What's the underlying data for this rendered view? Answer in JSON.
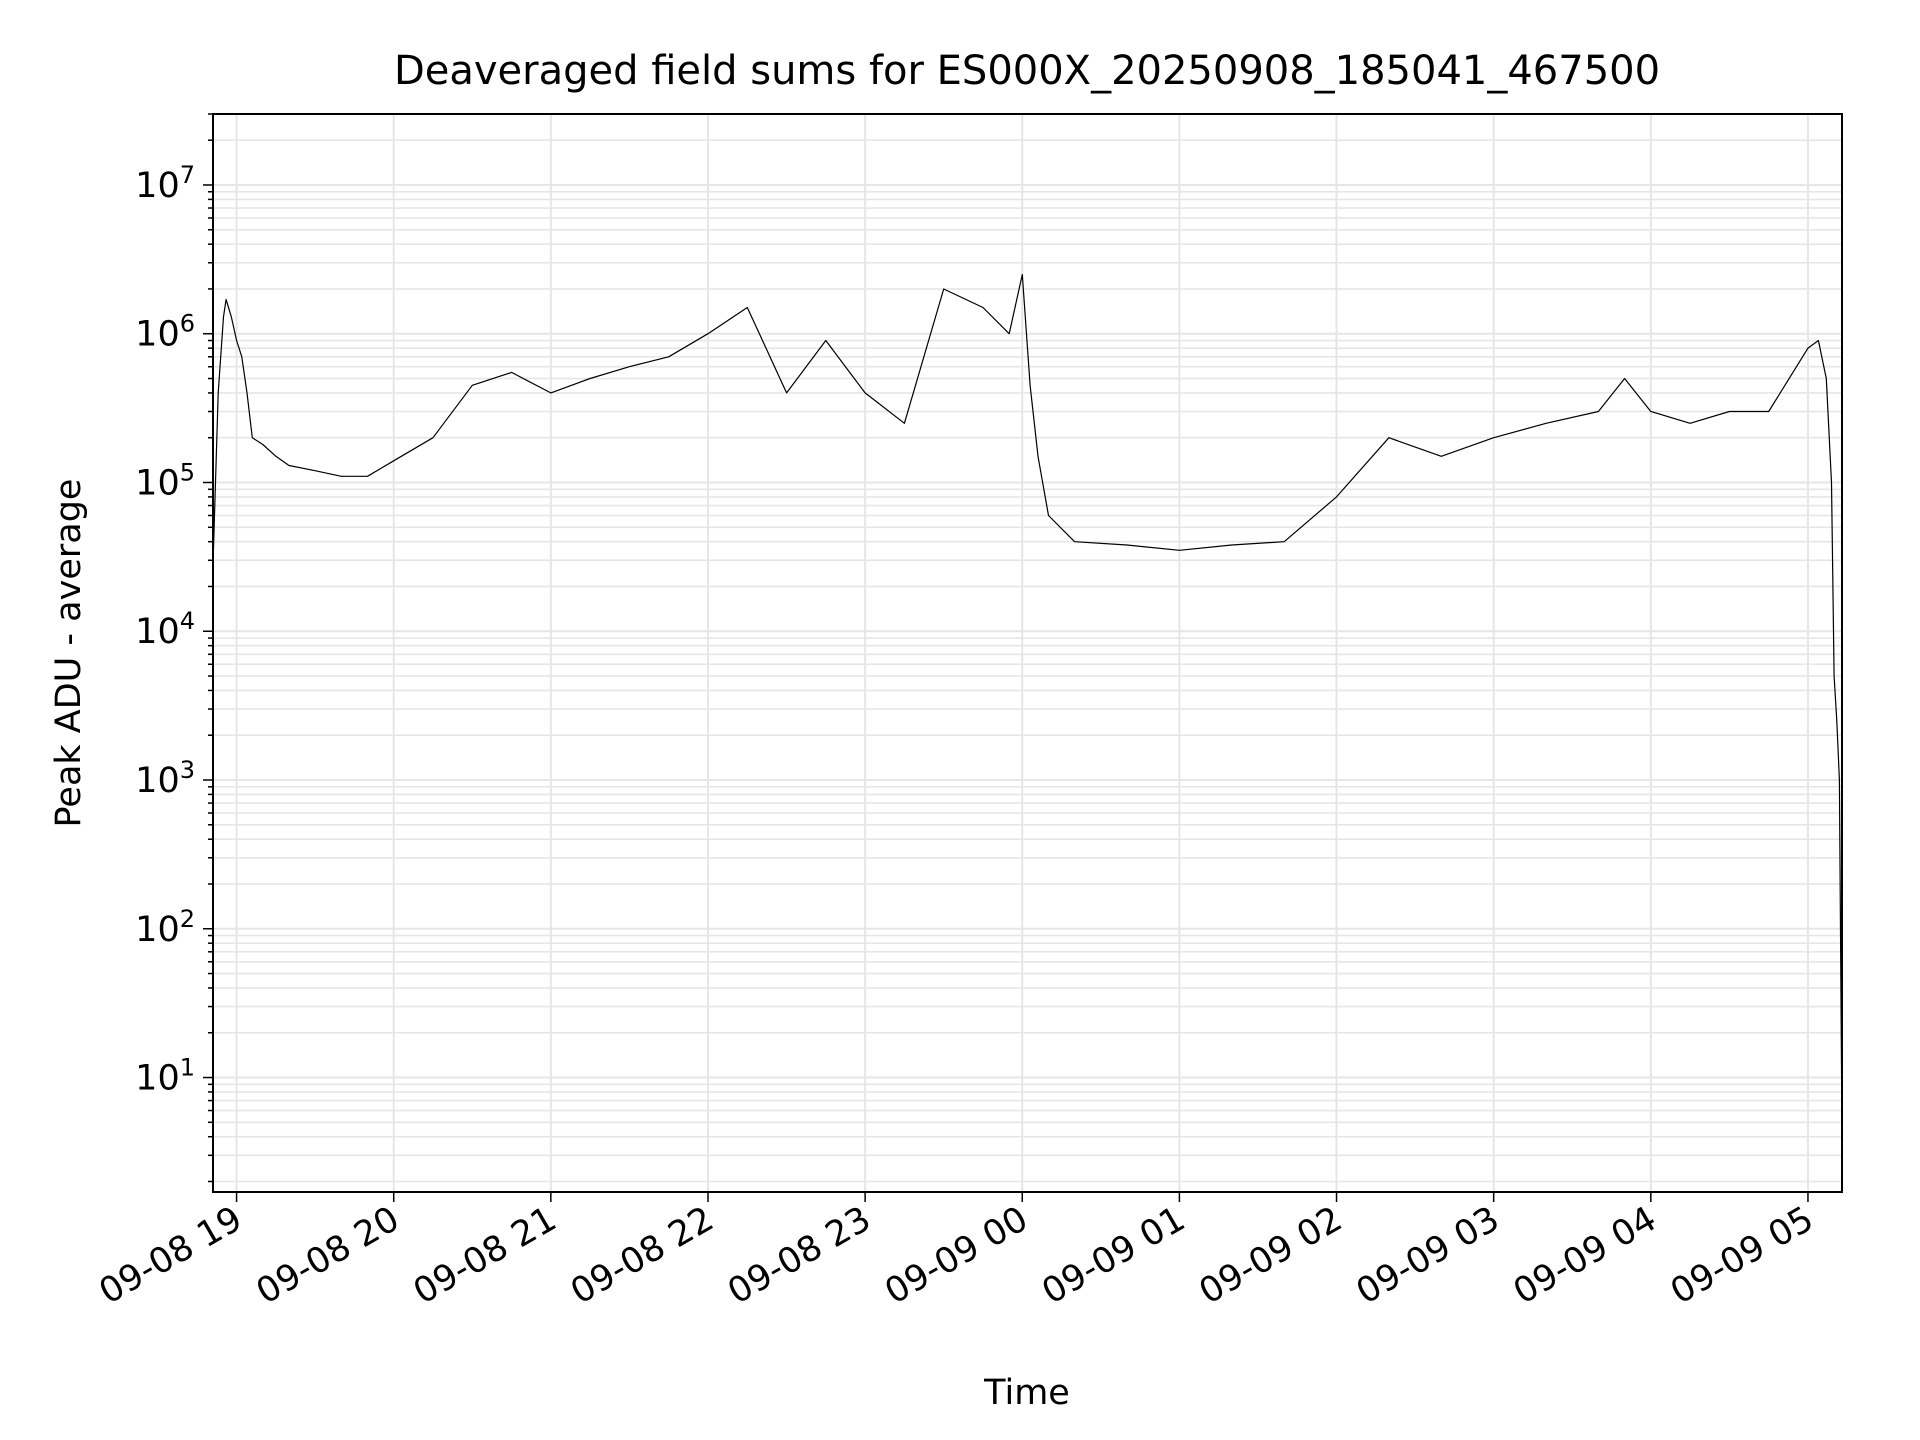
{
  "chart_data": {
    "type": "line",
    "title": "Deaveraged field sums for ES000X_20250908_185041_467500",
    "xlabel": "Time",
    "ylabel": "Peak ADU - average",
    "yscale": "log",
    "ylim": [
      1.7,
      30000000
    ],
    "xlim": [
      "2025-09-08 18:51",
      "2025-09-09 05:13"
    ],
    "grid": true,
    "legend": "none",
    "colors": {
      "line": "#000000",
      "grid": "#e6e6e6",
      "axes": "#000000"
    },
    "x_ticks": [
      "09-08 19",
      "09-08 20",
      "09-08 21",
      "09-08 22",
      "09-08 23",
      "09-09 00",
      "09-09 01",
      "09-09 02",
      "09-09 03",
      "09-09 04",
      "09-09 05"
    ],
    "y_ticks": [
      {
        "base": "10",
        "exp": "1",
        "value": 10
      },
      {
        "base": "10",
        "exp": "2",
        "value": 100
      },
      {
        "base": "10",
        "exp": "3",
        "value": 1000
      },
      {
        "base": "10",
        "exp": "4",
        "value": 10000
      },
      {
        "base": "10",
        "exp": "5",
        "value": 100000
      },
      {
        "base": "10",
        "exp": "6",
        "value": 1000000
      },
      {
        "base": "10",
        "exp": "7",
        "value": 10000000
      }
    ],
    "series": [
      {
        "x": [
          "2025-09-08 18:51",
          "2025-09-08 18:53",
          "2025-09-08 18:55",
          "2025-09-08 18:56",
          "2025-09-08 18:58",
          "2025-09-08 19:00",
          "2025-09-08 19:02",
          "2025-09-08 19:04",
          "2025-09-08 19:06",
          "2025-09-08 19:10",
          "2025-09-08 19:15",
          "2025-09-08 19:20",
          "2025-09-08 19:30",
          "2025-09-08 19:40",
          "2025-09-08 19:50",
          "2025-09-08 20:00",
          "2025-09-08 20:15",
          "2025-09-08 20:30",
          "2025-09-08 20:45",
          "2025-09-08 21:00",
          "2025-09-08 21:15",
          "2025-09-08 21:30",
          "2025-09-08 21:45",
          "2025-09-08 22:00",
          "2025-09-08 22:15",
          "2025-09-08 22:30",
          "2025-09-08 22:45",
          "2025-09-08 23:00",
          "2025-09-08 23:15",
          "2025-09-08 23:30",
          "2025-09-08 23:45",
          "2025-09-08 23:55",
          "2025-09-09 00:00",
          "2025-09-09 00:03",
          "2025-09-09 00:06",
          "2025-09-09 00:10",
          "2025-09-09 00:20",
          "2025-09-09 00:40",
          "2025-09-09 01:00",
          "2025-09-09 01:20",
          "2025-09-09 01:40",
          "2025-09-09 02:00",
          "2025-09-09 02:20",
          "2025-09-09 02:40",
          "2025-09-09 03:00",
          "2025-09-09 03:20",
          "2025-09-09 03:40",
          "2025-09-09 03:50",
          "2025-09-09 04:00",
          "2025-09-09 04:15",
          "2025-09-09 04:30",
          "2025-09-09 04:45",
          "2025-09-09 05:00",
          "2025-09-09 05:04",
          "2025-09-09 05:07",
          "2025-09-09 05:09",
          "2025-09-09 05:10",
          "2025-09-09 05:11",
          "2025-09-09 05:12",
          "2025-09-09 05:13"
        ],
        "values": [
          28000,
          400000,
          1300000,
          1700000,
          1300000,
          900000,
          700000,
          400000,
          200000,
          180000,
          150000,
          130000,
          120000,
          110000,
          110000,
          140000,
          200000,
          450000,
          550000,
          400000,
          500000,
          600000,
          700000,
          1000000,
          1500000,
          400000,
          900000,
          400000,
          250000,
          2000000,
          1500000,
          1000000,
          2500000,
          450000,
          150000,
          60000,
          40000,
          38000,
          35000,
          38000,
          40000,
          80000,
          200000,
          150000,
          200000,
          250000,
          300000,
          500000,
          300000,
          250000,
          300000,
          300000,
          800000,
          900000,
          500000,
          100000,
          5000,
          2500,
          1000,
          4
        ]
      }
    ]
  }
}
